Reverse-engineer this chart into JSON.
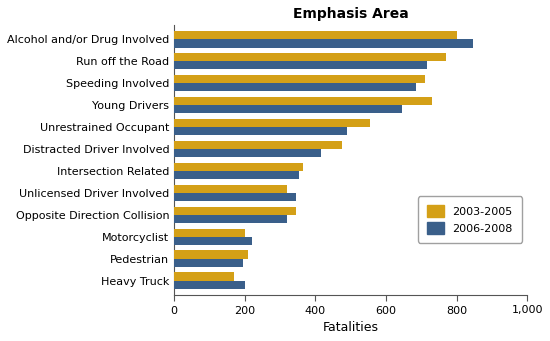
{
  "title": "Emphasis Area",
  "xlabel": "Fatalities",
  "categories": [
    "Alcohol and/or Drug Involved",
    "Run off the Road",
    "Speeding Involved",
    "Young Drivers",
    "Unrestrained Occupant",
    "Distracted Driver Involved",
    "Intersection Related",
    "Unlicensed Driver Involved",
    "Opposite Direction Collision",
    "Motorcyclist",
    "Pedestrian",
    "Heavy Truck"
  ],
  "series": [
    {
      "label": "2003-2005",
      "color": "#D4A017",
      "values": [
        800,
        770,
        710,
        730,
        555,
        475,
        365,
        320,
        345,
        200,
        210,
        170
      ]
    },
    {
      "label": "2006-2008",
      "color": "#3A5F8A",
      "values": [
        845,
        715,
        685,
        645,
        490,
        415,
        355,
        345,
        320,
        220,
        195,
        200
      ]
    }
  ],
  "xlim": [
    0,
    1000
  ],
  "xticks": [
    0,
    200,
    400,
    600,
    800,
    1000
  ],
  "xticklabels": [
    "0",
    "200",
    "400",
    "600",
    "800",
    "1,000"
  ],
  "bar_height": 0.38,
  "background_color": "#ffffff",
  "title_fontsize": 10,
  "label_fontsize": 9,
  "tick_fontsize": 8,
  "ylabel_fontsize": 8.5
}
